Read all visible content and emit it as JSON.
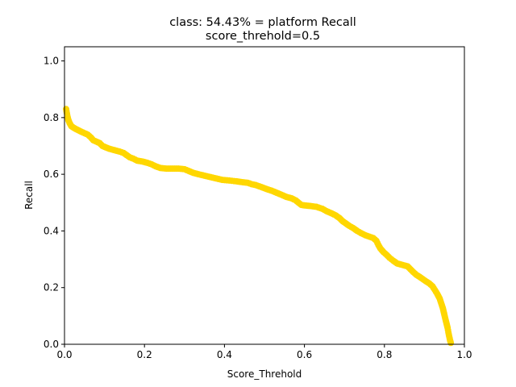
{
  "chart_data": {
    "type": "scatter",
    "title_line1": "class: 54.43% = platform Recall",
    "title_line2": "score_threhold=0.5",
    "xlabel": "Score_Threhold",
    "ylabel": "Recall",
    "xlim": [
      0.0,
      1.0
    ],
    "ylim": [
      0.0,
      1.05
    ],
    "xticks": [
      "0.0",
      "0.2",
      "0.4",
      "0.6",
      "0.8",
      "1.0"
    ],
    "yticks": [
      "0.0",
      "0.2",
      "0.4",
      "0.6",
      "0.8",
      "1.0"
    ],
    "grid": false,
    "series_color": "#FFD700",
    "points": [
      [
        0.004,
        0.83
      ],
      [
        0.006,
        0.815
      ],
      [
        0.008,
        0.8
      ],
      [
        0.01,
        0.79
      ],
      [
        0.013,
        0.78
      ],
      [
        0.017,
        0.77
      ],
      [
        0.022,
        0.765
      ],
      [
        0.028,
        0.76
      ],
      [
        0.035,
        0.755
      ],
      [
        0.042,
        0.75
      ],
      [
        0.05,
        0.745
      ],
      [
        0.058,
        0.74
      ],
      [
        0.066,
        0.73
      ],
      [
        0.072,
        0.72
      ],
      [
        0.08,
        0.715
      ],
      [
        0.088,
        0.71
      ],
      [
        0.095,
        0.7
      ],
      [
        0.103,
        0.695
      ],
      [
        0.112,
        0.69
      ],
      [
        0.125,
        0.685
      ],
      [
        0.138,
        0.68
      ],
      [
        0.148,
        0.675
      ],
      [
        0.155,
        0.668
      ],
      [
        0.163,
        0.66
      ],
      [
        0.172,
        0.655
      ],
      [
        0.182,
        0.648
      ],
      [
        0.195,
        0.645
      ],
      [
        0.208,
        0.64
      ],
      [
        0.218,
        0.635
      ],
      [
        0.228,
        0.628
      ],
      [
        0.24,
        0.622
      ],
      [
        0.255,
        0.62
      ],
      [
        0.27,
        0.62
      ],
      [
        0.285,
        0.62
      ],
      [
        0.3,
        0.618
      ],
      [
        0.31,
        0.612
      ],
      [
        0.322,
        0.605
      ],
      [
        0.335,
        0.6
      ],
      [
        0.35,
        0.595
      ],
      [
        0.365,
        0.59
      ],
      [
        0.38,
        0.585
      ],
      [
        0.395,
        0.58
      ],
      [
        0.412,
        0.578
      ],
      [
        0.43,
        0.575
      ],
      [
        0.445,
        0.572
      ],
      [
        0.458,
        0.57
      ],
      [
        0.468,
        0.565
      ],
      [
        0.478,
        0.562
      ],
      [
        0.492,
        0.555
      ],
      [
        0.505,
        0.548
      ],
      [
        0.518,
        0.542
      ],
      [
        0.53,
        0.535
      ],
      [
        0.542,
        0.528
      ],
      [
        0.555,
        0.52
      ],
      [
        0.568,
        0.515
      ],
      [
        0.578,
        0.508
      ],
      [
        0.585,
        0.5
      ],
      [
        0.592,
        0.492
      ],
      [
        0.6,
        0.49
      ],
      [
        0.615,
        0.488
      ],
      [
        0.63,
        0.485
      ],
      [
        0.645,
        0.478
      ],
      [
        0.655,
        0.47
      ],
      [
        0.668,
        0.462
      ],
      [
        0.678,
        0.455
      ],
      [
        0.688,
        0.445
      ],
      [
        0.695,
        0.435
      ],
      [
        0.705,
        0.425
      ],
      [
        0.712,
        0.418
      ],
      [
        0.722,
        0.41
      ],
      [
        0.732,
        0.4
      ],
      [
        0.742,
        0.392
      ],
      [
        0.752,
        0.385
      ],
      [
        0.762,
        0.38
      ],
      [
        0.772,
        0.375
      ],
      [
        0.78,
        0.365
      ],
      [
        0.785,
        0.35
      ],
      [
        0.79,
        0.338
      ],
      [
        0.798,
        0.325
      ],
      [
        0.806,
        0.315
      ],
      [
        0.813,
        0.305
      ],
      [
        0.822,
        0.295
      ],
      [
        0.832,
        0.285
      ],
      [
        0.845,
        0.28
      ],
      [
        0.858,
        0.275
      ],
      [
        0.865,
        0.265
      ],
      [
        0.872,
        0.255
      ],
      [
        0.88,
        0.245
      ],
      [
        0.888,
        0.238
      ],
      [
        0.896,
        0.23
      ],
      [
        0.904,
        0.222
      ],
      [
        0.912,
        0.215
      ],
      [
        0.92,
        0.205
      ],
      [
        0.926,
        0.192
      ],
      [
        0.932,
        0.178
      ],
      [
        0.938,
        0.162
      ],
      [
        0.942,
        0.145
      ],
      [
        0.946,
        0.128
      ],
      [
        0.949,
        0.11
      ],
      [
        0.952,
        0.092
      ],
      [
        0.955,
        0.075
      ],
      [
        0.958,
        0.058
      ],
      [
        0.96,
        0.042
      ],
      [
        0.962,
        0.028
      ],
      [
        0.964,
        0.015
      ],
      [
        0.966,
        0.005
      ]
    ]
  }
}
